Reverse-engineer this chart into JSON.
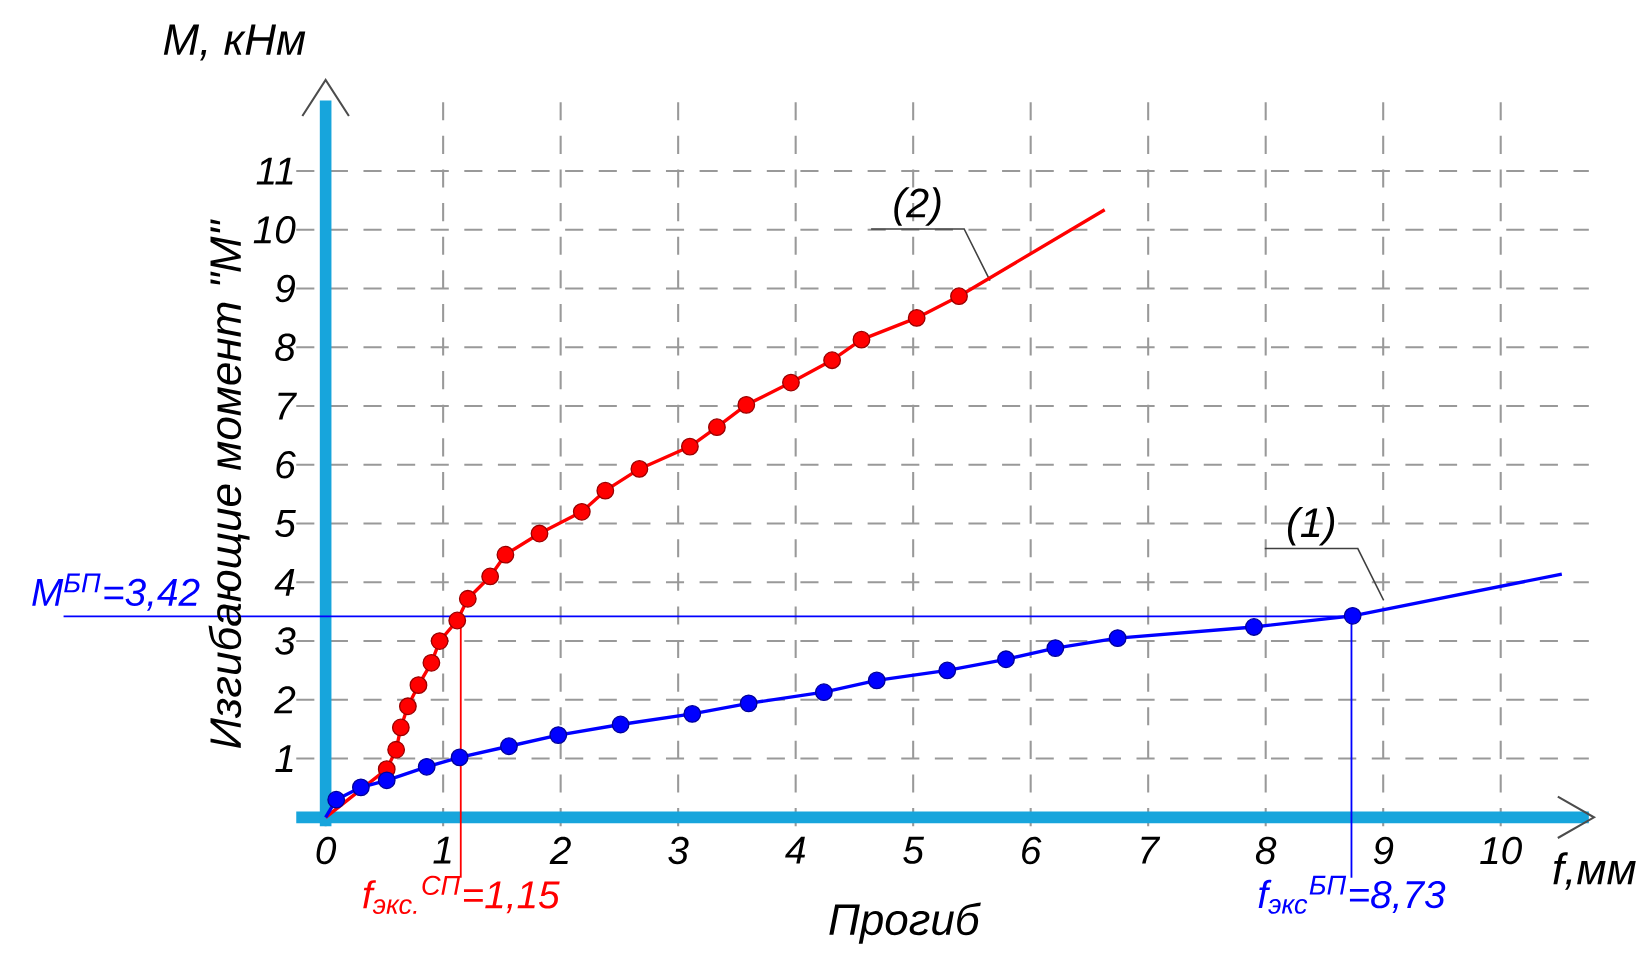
{
  "chart_data": {
    "type": "line",
    "xlabel": "Прогиб",
    "ylabel": "Изгибающие момент \"M\"",
    "annotations": [
      "M, кНм",
      "f,мм"
    ],
    "xlim": [
      -0.25,
      10.75
    ],
    "ylim": [
      -0.15,
      12.2
    ],
    "xticks": [
      0,
      1,
      2,
      3,
      4,
      5,
      6,
      7,
      8,
      9,
      10
    ],
    "yticks": [
      1,
      2,
      3,
      4,
      5,
      6,
      7,
      8,
      9,
      10,
      11
    ],
    "grid": true,
    "series": [
      {
        "name": "(2)",
        "color": "#ff0000",
        "marker": "circle",
        "x": [
          0.52,
          0.6,
          0.64,
          0.7,
          0.79,
          0.9,
          0.97,
          1.12,
          1.21,
          1.4,
          1.53,
          1.82,
          2.18,
          2.38,
          2.67,
          3.1,
          3.33,
          3.58,
          3.96,
          4.31,
          4.56,
          5.03,
          5.39
        ],
        "values": [
          0.82,
          1.15,
          1.53,
          1.89,
          2.25,
          2.63,
          3.0,
          3.35,
          3.72,
          4.1,
          4.47,
          4.83,
          5.2,
          5.56,
          5.93,
          6.31,
          6.64,
          7.02,
          7.4,
          7.78,
          8.13,
          8.5,
          8.87
        ]
      },
      {
        "color": "#ff0000",
        "marker": "none",
        "x": [
          0,
          0.52,
          3,
          5.39,
          6.63
        ],
        "values": [
          0,
          0.82,
          null,
          8.87,
          10.34
        ]
      },
      {
        "name": "(1)",
        "color": "#0000ff",
        "marker": "circle",
        "x": [
          0.09,
          0.3,
          0.52,
          0.86,
          1.14,
          1.56,
          1.98,
          2.51,
          3.12,
          3.6,
          4.24,
          4.69,
          5.29,
          5.79,
          6.21,
          6.74,
          7.9,
          8.74
        ],
        "values": [
          0.3,
          0.51,
          0.63,
          0.86,
          1.02,
          1.21,
          1.4,
          1.58,
          1.76,
          1.94,
          2.13,
          2.33,
          2.5,
          2.69,
          2.88,
          3.05,
          3.24,
          3.43
        ]
      },
      {
        "color": "#0000ff",
        "marker": "none",
        "x": [
          0,
          0.09,
          5,
          8.74,
          10.52
        ],
        "values": [
          0,
          0.3,
          null,
          3.43,
          4.14
        ]
      }
    ],
    "ref_lines": [
      {
        "axis": "y",
        "value": 3.42,
        "label": "M$^{БП}$=3,42",
        "color": "#0000ff"
      },
      {
        "axis": "x",
        "value": 1.15,
        "label": "f$_{экс.}$$^{СП}$=1,15",
        "color": "#ff0000"
      },
      {
        "axis": "x",
        "value": 8.73,
        "label": "f$_{экс}$$^{БП}$=8,73",
        "color": "#0000ff"
      }
    ]
  }
}
